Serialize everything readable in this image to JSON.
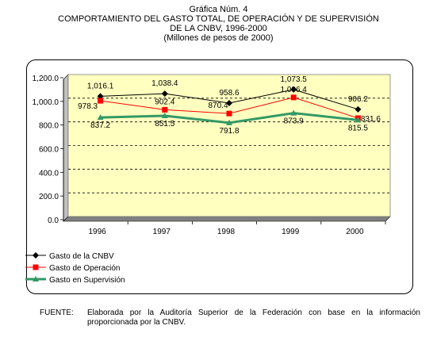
{
  "title": {
    "line1": "Gráfica Núm. 4",
    "line2": "COMPORTAMIENTO DEL GASTO TOTAL, DE OPERACIÓN Y DE SUPERVISIÓN",
    "line3": "DE LA CNBV, 1996-2000",
    "line4": "(Millones de pesos de 2000)"
  },
  "source": {
    "label": "FUENTE:",
    "text": "Elaborada por la Auditoría Superior de la Federación con base en la información proporcionada por la CNBV."
  },
  "chart_data": {
    "type": "line",
    "categories": [
      "1996",
      "1997",
      "1998",
      "1999",
      "2000"
    ],
    "ylim": [
      0,
      1200
    ],
    "yticks": [
      "0.0",
      "200.0",
      "400.0",
      "600.0",
      "800.0",
      "1,000.0",
      "1,200.0"
    ],
    "grid": "horizontal dashed",
    "plot_background": "#ffffc0",
    "legend_position": "bottom-left",
    "series": [
      {
        "name": "Gasto de la CNBV",
        "values": [
          1016.1,
          1038.4,
          958.6,
          1073.5,
          906.2
        ],
        "labels": [
          "1,016.1",
          "1,038.4",
          "958.6",
          "1,073.5",
          "906.2"
        ],
        "color": "#000000",
        "marker": "diamond"
      },
      {
        "name": "Gasto de Operación",
        "values": [
          978.3,
          902.4,
          870.4,
          1006.4,
          831.6
        ],
        "labels": [
          "978.3",
          "902.4",
          "870.4",
          "1,006.4",
          "831.6"
        ],
        "color": "#ff0000",
        "marker": "square"
      },
      {
        "name": "Gasto en Supervisión",
        "values": [
          837.2,
          851.5,
          791.8,
          873.9,
          815.5
        ],
        "labels": [
          "837.2",
          "851.5",
          "791.8",
          "873.9",
          "815.5"
        ],
        "color": "#339966",
        "marker": "triangle"
      }
    ]
  }
}
